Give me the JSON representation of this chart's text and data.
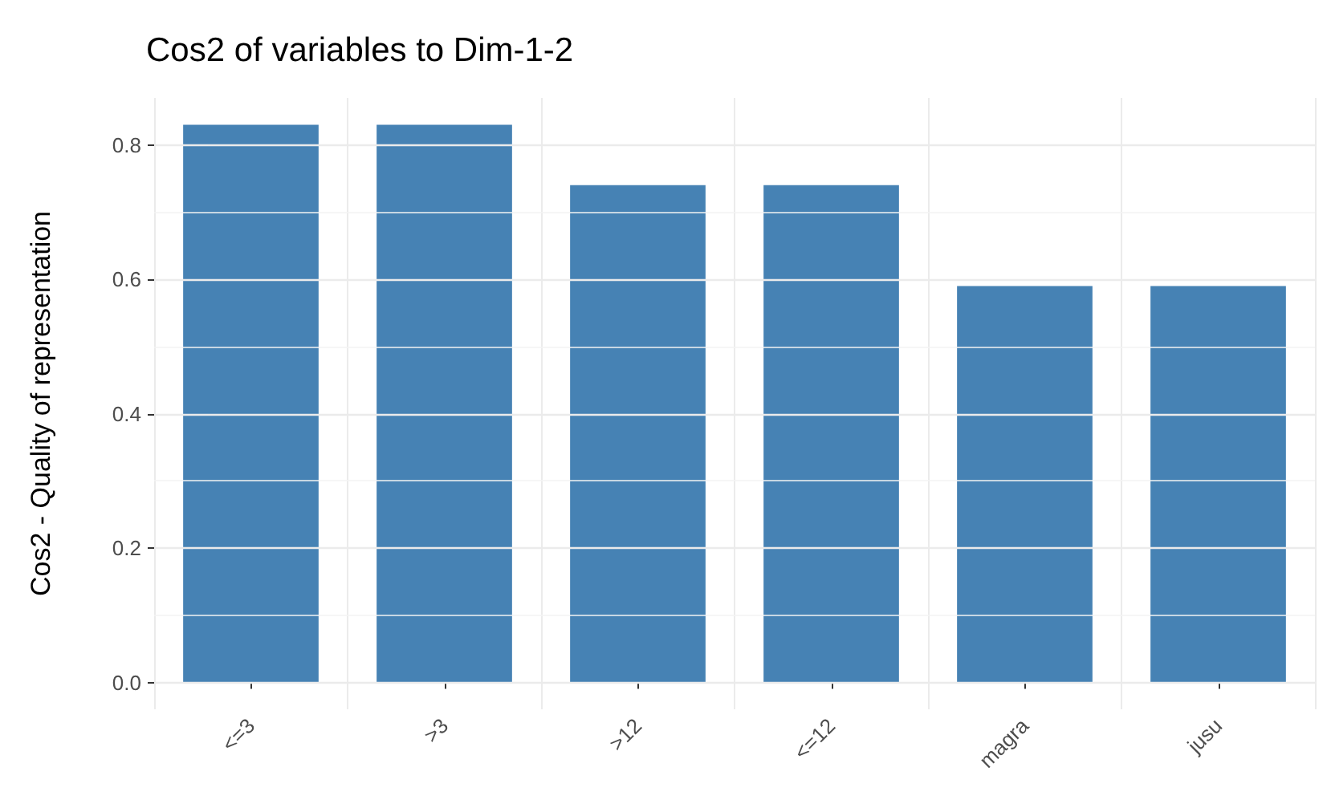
{
  "chart_data": {
    "type": "bar",
    "title": "Cos2 of variables to Dim-1-2",
    "ylabel": "Cos2 - Quality of representation",
    "categories": [
      "<=3",
      ">3",
      ">12",
      "<=12",
      "magra",
      "jusu"
    ],
    "values": [
      0.83,
      0.83,
      0.74,
      0.74,
      0.59,
      0.59
    ],
    "color": "#4682b4",
    "ylim": [
      -0.04,
      0.87
    ],
    "yticks": [
      {
        "value": 0,
        "label": "0.0"
      },
      {
        "value": 0.2,
        "label": "0.2"
      },
      {
        "value": 0.4,
        "label": "0.4"
      },
      {
        "value": 0.6,
        "label": "0.6"
      },
      {
        "value": 0.8,
        "label": "0.8"
      }
    ],
    "grid": true
  }
}
